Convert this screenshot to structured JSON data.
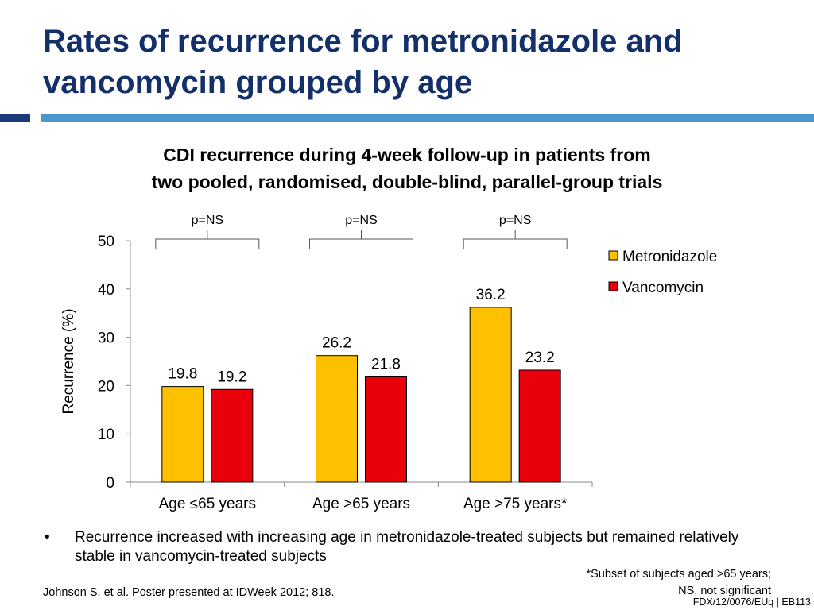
{
  "slide": {
    "title": "Rates of recurrence for metronidazole and vancomycin grouped by age",
    "chart_title_line1": "CDI recurrence during 4-week follow-up in patients from",
    "chart_title_line2": "two pooled, randomised, double-blind, parallel-group trials",
    "bullet_marker": "•",
    "bullet": "Recurrence increased with increasing age in metronidazole-treated subjects but remained relatively stable in vancomycin-treated subjects",
    "footnote_line1": "*Subset of subjects aged >65 years;",
    "footnote_line2": "NS, not significant",
    "citation": "Johnson S, et al. Poster presented at IDWeek 2012; 818.",
    "slide_code": "FDX/12/0076/EUq | EB113"
  },
  "chart_data": {
    "type": "bar",
    "title": "CDI recurrence during 4-week follow-up in patients from two pooled, randomised, double-blind, parallel-group trials",
    "xlabel": "",
    "ylabel": "Recurrence (%)",
    "ylim": [
      0,
      50
    ],
    "yticks": [
      0,
      10,
      20,
      30,
      40,
      50
    ],
    "grid": false,
    "legend_position": "top-right",
    "categories": [
      "Age ≤65 years",
      "Age >65 years",
      "Age >75 years*"
    ],
    "series": [
      {
        "name": "Metronidazole",
        "color": "#ffc000",
        "values": [
          19.8,
          26.2,
          36.2
        ]
      },
      {
        "name": "Vancomycin",
        "color": "#e8000b",
        "values": [
          19.2,
          21.8,
          23.2
        ]
      }
    ],
    "annotations": [
      "p=NS",
      "p=NS",
      "p=NS"
    ]
  }
}
